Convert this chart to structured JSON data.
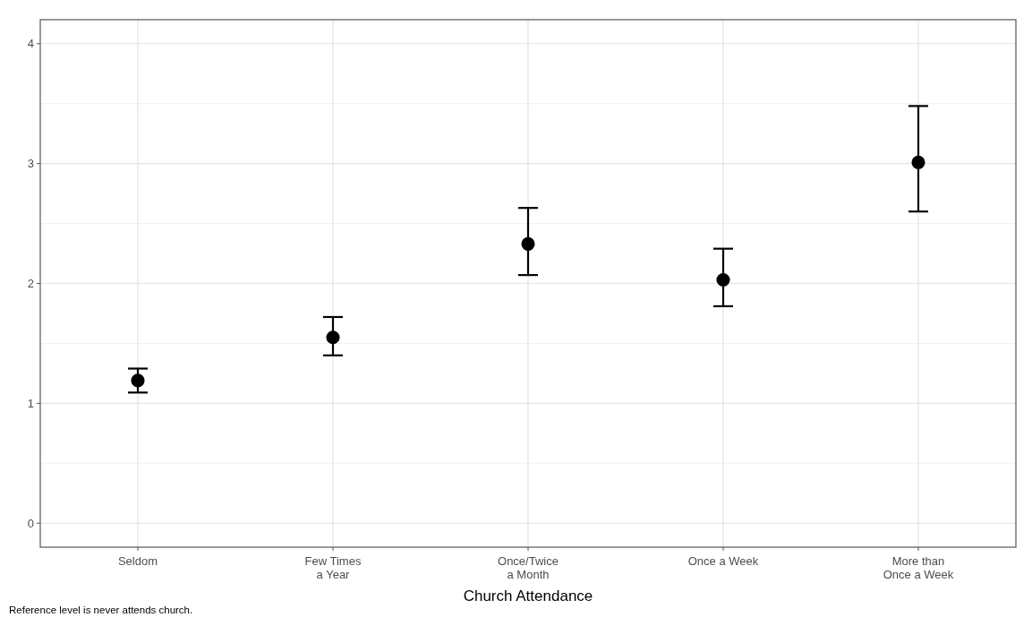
{
  "chart_data": {
    "type": "scatter",
    "xlabel": "Church Attendance",
    "categories": [
      "Seldom",
      "Few Times\na Year",
      "Once/Twice\na Month",
      "Once a Week",
      "More than\nOnce a Week"
    ],
    "values": [
      1.19,
      1.55,
      2.33,
      2.03,
      3.01
    ],
    "errors": [
      [
        1.09,
        1.29
      ],
      [
        1.4,
        1.72
      ],
      [
        2.07,
        2.63
      ],
      [
        1.81,
        2.29
      ],
      [
        2.6,
        3.48
      ]
    ],
    "color": "#000000",
    "marker": "circle",
    "ylim": [
      -0.2,
      4.2
    ],
    "yticks": [
      0,
      1,
      2,
      3,
      4
    ],
    "grid": true,
    "annotations": [
      "Reference level is never attends church."
    ]
  }
}
